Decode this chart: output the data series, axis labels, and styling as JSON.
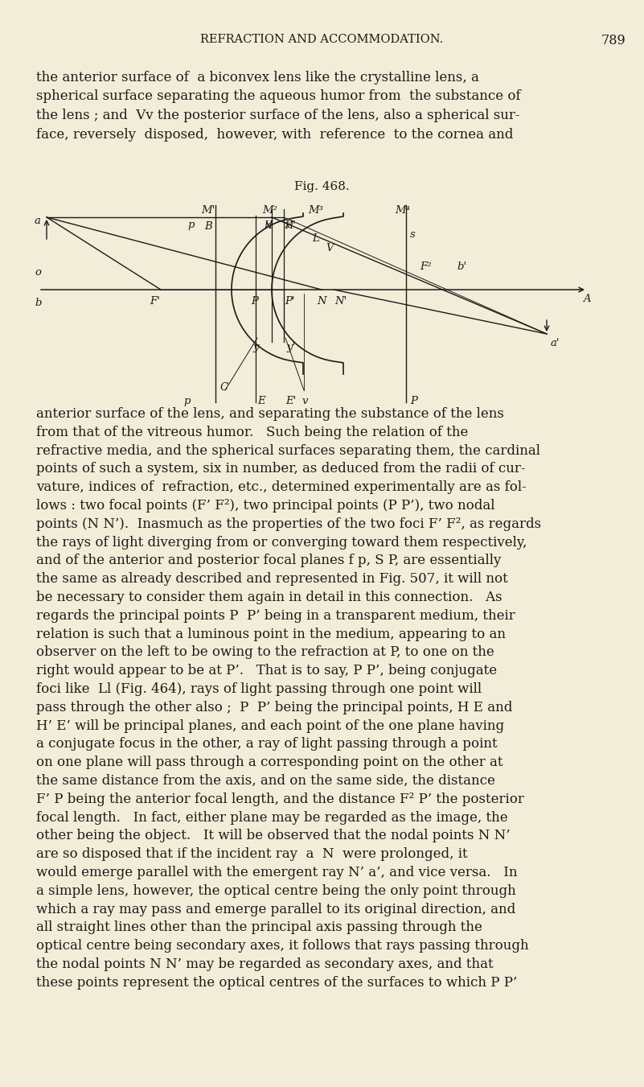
{
  "bg_color": "#f2edd8",
  "text_color": "#1a1a1a",
  "header_text": "REFRACTION AND ACCOMMODATION.",
  "page_num": "789",
  "intro_lines": [
    "the anterior surface of  a biconvex lens like the crystalline lens, a",
    "spherical surface separating the aqueous humor from  the substance of",
    "the lens ; and  Vv the posterior surface of the lens, also a spherical sur-",
    "face, reversely  disposed,  however, with  reference  to the cornea and"
  ],
  "fig_caption": "Fig. 468.",
  "body_lines": [
    "anterior surface of the lens, and separating the substance of the lens",
    "from that of the vitreous humor.   Such being the relation of the",
    "refractive media, and the spherical surfaces separating them, the cardinal",
    "points of such a system, six in number, as deduced from the radii of cur-",
    "vature, indices of  refraction, etc., determined experimentally are as fol-",
    "lows : two focal points (F’ F²), two principal points (P P’), two nodal",
    "points (N N’).  Inasmuch as the properties of the two foci F’ F², as regards",
    "the rays of light diverging from or converging toward them respectively,",
    "and of the anterior and posterior focal planes f p, S P, are essentially",
    "the same as already described and represented in Fig. 507, it will not",
    "be necessary to consider them again in detail in this connection.   As",
    "regards the principal points P  P’ being in a transparent medium, their",
    "relation is such that a luminous point in the medium, appearing to an",
    "observer on the left to be owing to the refraction at P, to one on the",
    "right would appear to be at P’.   That is to say, P P’, being conjugate",
    "foci like  Ll (Fig. 464), rays of light passing through one point will",
    "pass through the other also ;  P  P’ being the principal points, H E and",
    "H’ E’ will be principal planes, and each point of the one plane having",
    "a conjugate focus in the other, a ray of light passing through a point",
    "on one plane will pass through a corresponding point on the other at",
    "the same distance from the axis, and on the same side, the distance",
    "F’ P being the anterior focal length, and the distance F² P’ the posterior",
    "focal length.   In fact, either plane may be regarded as the image, the",
    "other being the object.   It will be observed that the nodal points N N’",
    "are so disposed that if the incident ray  a  N  were prolonged, it",
    "would emerge parallel with the emergent ray N’ a’, and vice versa.   In",
    "a simple lens, however, the optical centre being the only point through",
    "which a ray may pass and emerge parallel to its original direction, and",
    "all straight lines other than the principal axis passing through the",
    "optical centre being secondary axes, it follows that rays passing through",
    "the nodal points N N’ may be regarded as secondary axes, and that",
    "these points represent the optical centres of the surfaces to which P P’"
  ]
}
